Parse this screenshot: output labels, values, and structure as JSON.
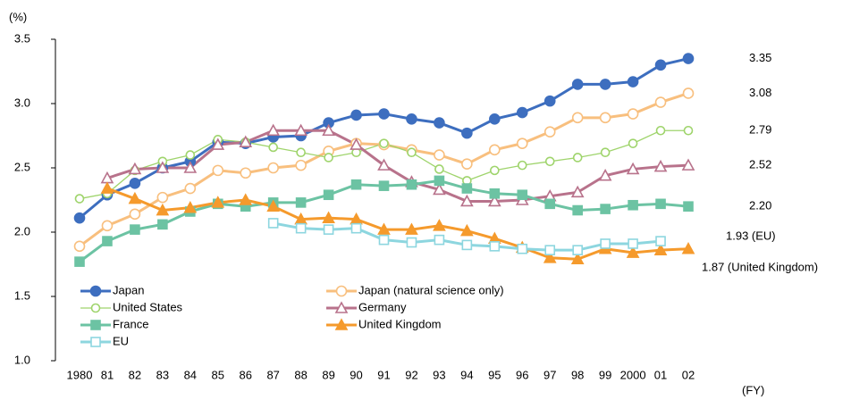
{
  "chart_data": {
    "type": "line",
    "y_label": "(%)",
    "x_label": "(FY)",
    "categories": [
      "1980",
      "81",
      "82",
      "83",
      "84",
      "85",
      "86",
      "87",
      "88",
      "89",
      "90",
      "91",
      "92",
      "93",
      "94",
      "95",
      "96",
      "97",
      "98",
      "99",
      "2000",
      "01",
      "02"
    ],
    "ylim": [
      1.0,
      3.5
    ],
    "yticks": [
      {
        "value": 1.0,
        "label": "1.0"
      },
      1.5,
      {
        "value": 2.0,
        "label": "2.0"
      },
      2.5,
      {
        "value": 3.0,
        "label": "3.0"
      },
      3.5
    ],
    "grid": false,
    "legend": "lower left",
    "series": [
      {
        "name": "Japan",
        "color": "#3d6ebf",
        "marker": "circle",
        "filled": true,
        "values": [
          2.11,
          2.29,
          2.38,
          2.5,
          2.55,
          2.7,
          2.69,
          2.74,
          2.75,
          2.85,
          2.91,
          2.92,
          2.88,
          2.85,
          2.77,
          2.88,
          2.93,
          3.02,
          3.15,
          3.15,
          3.17,
          3.3,
          3.35
        ],
        "value_labels": [
          null,
          null,
          null,
          null,
          null,
          null,
          null,
          null,
          null,
          null,
          null,
          null,
          null,
          null,
          null,
          null,
          null,
          null,
          null,
          null,
          null,
          null,
          "3.35"
        ]
      },
      {
        "name": "Japan (natural science only)",
        "color": "#f8bf7e",
        "marker": "circle",
        "filled": false,
        "values": [
          1.89,
          2.05,
          2.14,
          2.27,
          2.34,
          2.48,
          2.46,
          2.5,
          2.52,
          2.63,
          2.69,
          2.68,
          2.64,
          2.6,
          2.53,
          2.64,
          2.69,
          2.78,
          2.89,
          2.89,
          2.92,
          3.01,
          3.08
        ],
        "value_labels": [
          null,
          null,
          null,
          null,
          null,
          null,
          null,
          null,
          null,
          null,
          null,
          null,
          null,
          null,
          null,
          null,
          null,
          null,
          null,
          null,
          null,
          null,
          "3.08"
        ]
      },
      {
        "name": "United States",
        "color": "#9fd46c",
        "marker": "smallcircle",
        "filled": false,
        "values": [
          2.26,
          2.3,
          2.48,
          2.55,
          2.6,
          2.72,
          2.7,
          2.66,
          2.62,
          2.58,
          2.62,
          2.69,
          2.62,
          2.49,
          2.4,
          2.48,
          2.52,
          2.55,
          2.58,
          2.62,
          2.69,
          2.79,
          2.79
        ],
        "value_labels": [
          null,
          null,
          null,
          null,
          null,
          null,
          null,
          null,
          null,
          null,
          null,
          null,
          null,
          null,
          null,
          null,
          null,
          null,
          null,
          null,
          null,
          null,
          "2.79"
        ]
      },
      {
        "name": "Germany",
        "color": "#b8728b",
        "marker": "triangle",
        "filled": false,
        "values": [
          null,
          2.42,
          2.49,
          2.5,
          2.5,
          2.68,
          2.7,
          2.79,
          2.79,
          2.79,
          2.68,
          2.52,
          2.39,
          2.33,
          2.24,
          2.24,
          2.25,
          2.28,
          2.31,
          2.44,
          2.49,
          2.51,
          2.52
        ],
        "value_labels": [
          null,
          null,
          null,
          null,
          null,
          null,
          null,
          null,
          null,
          null,
          null,
          null,
          null,
          null,
          null,
          null,
          null,
          null,
          null,
          null,
          null,
          null,
          "2.52"
        ]
      },
      {
        "name": "France",
        "color": "#6cc3a3",
        "marker": "square",
        "filled": true,
        "values": [
          1.77,
          1.93,
          2.02,
          2.06,
          2.16,
          2.22,
          2.2,
          2.23,
          2.23,
          2.29,
          2.37,
          2.36,
          2.37,
          2.4,
          2.34,
          2.3,
          2.29,
          2.22,
          2.17,
          2.18,
          2.21,
          2.22,
          2.2
        ],
        "value_labels": [
          null,
          null,
          null,
          null,
          null,
          null,
          null,
          null,
          null,
          null,
          null,
          null,
          null,
          null,
          null,
          null,
          null,
          null,
          null,
          null,
          null,
          null,
          "2.20"
        ]
      },
      {
        "name": "United Kingdom",
        "color": "#f59a2c",
        "marker": "triangle",
        "filled": true,
        "values": [
          null,
          2.34,
          2.26,
          2.17,
          2.19,
          2.23,
          2.25,
          2.2,
          2.1,
          2.11,
          2.1,
          2.02,
          2.02,
          2.05,
          2.01,
          1.95,
          1.88,
          1.8,
          1.79,
          1.87,
          1.84,
          1.86,
          1.87
        ],
        "value_labels": [
          null,
          null,
          null,
          null,
          null,
          null,
          null,
          null,
          null,
          null,
          null,
          null,
          null,
          null,
          null,
          null,
          null,
          null,
          null,
          null,
          null,
          null,
          "1.87 (United Kingdom)"
        ]
      },
      {
        "name": "EU",
        "color": "#8dd6df",
        "marker": "square",
        "filled": false,
        "values": [
          null,
          null,
          null,
          null,
          null,
          null,
          null,
          2.07,
          2.03,
          2.02,
          2.03,
          1.94,
          1.92,
          1.94,
          1.9,
          1.89,
          1.87,
          1.86,
          1.86,
          1.91,
          1.91,
          1.93,
          null
        ],
        "value_labels": [
          null,
          null,
          null,
          null,
          null,
          null,
          null,
          null,
          null,
          null,
          null,
          null,
          null,
          null,
          null,
          null,
          null,
          null,
          null,
          null,
          null,
          "1.93 (EU)",
          null
        ]
      }
    ]
  }
}
